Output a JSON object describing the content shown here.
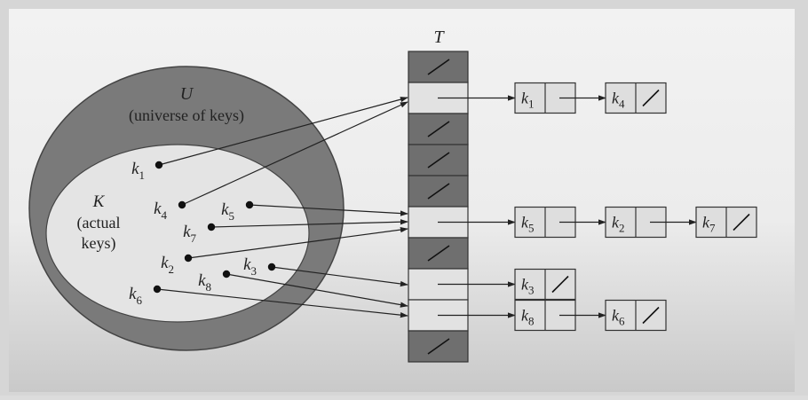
{
  "diagram": {
    "universe": {
      "symbol": "U",
      "caption": "(universe of keys)"
    },
    "actual": {
      "symbol": "K",
      "caption_lines": [
        "(actual",
        "keys)"
      ]
    },
    "table_label": "T",
    "keys": [
      {
        "id": "k1",
        "base": "k",
        "sub": "1",
        "slot": 1
      },
      {
        "id": "k4",
        "base": "k",
        "sub": "4",
        "slot": 1
      },
      {
        "id": "k5",
        "base": "k",
        "sub": "5",
        "slot": 5
      },
      {
        "id": "k7",
        "base": "k",
        "sub": "7",
        "slot": 5
      },
      {
        "id": "k2",
        "base": "k",
        "sub": "2",
        "slot": 5
      },
      {
        "id": "k3",
        "base": "k",
        "sub": "3",
        "slot": 7
      },
      {
        "id": "k8",
        "base": "k",
        "sub": "8",
        "slot": 8
      },
      {
        "id": "k6",
        "base": "k",
        "sub": "6",
        "slot": 8
      }
    ],
    "slots": [
      {
        "index": 0,
        "empty": true
      },
      {
        "index": 1,
        "empty": false,
        "chain": [
          "k1",
          "k4"
        ]
      },
      {
        "index": 2,
        "empty": true
      },
      {
        "index": 3,
        "empty": true
      },
      {
        "index": 4,
        "empty": true
      },
      {
        "index": 5,
        "empty": false,
        "chain": [
          "k5",
          "k2",
          "k7"
        ]
      },
      {
        "index": 6,
        "empty": true
      },
      {
        "index": 7,
        "empty": false,
        "chain": [
          "k3"
        ]
      },
      {
        "index": 8,
        "empty": false,
        "chain": [
          "k8",
          "k6"
        ]
      },
      {
        "index": 9,
        "empty": true
      }
    ],
    "nil_symbol": "/"
  }
}
